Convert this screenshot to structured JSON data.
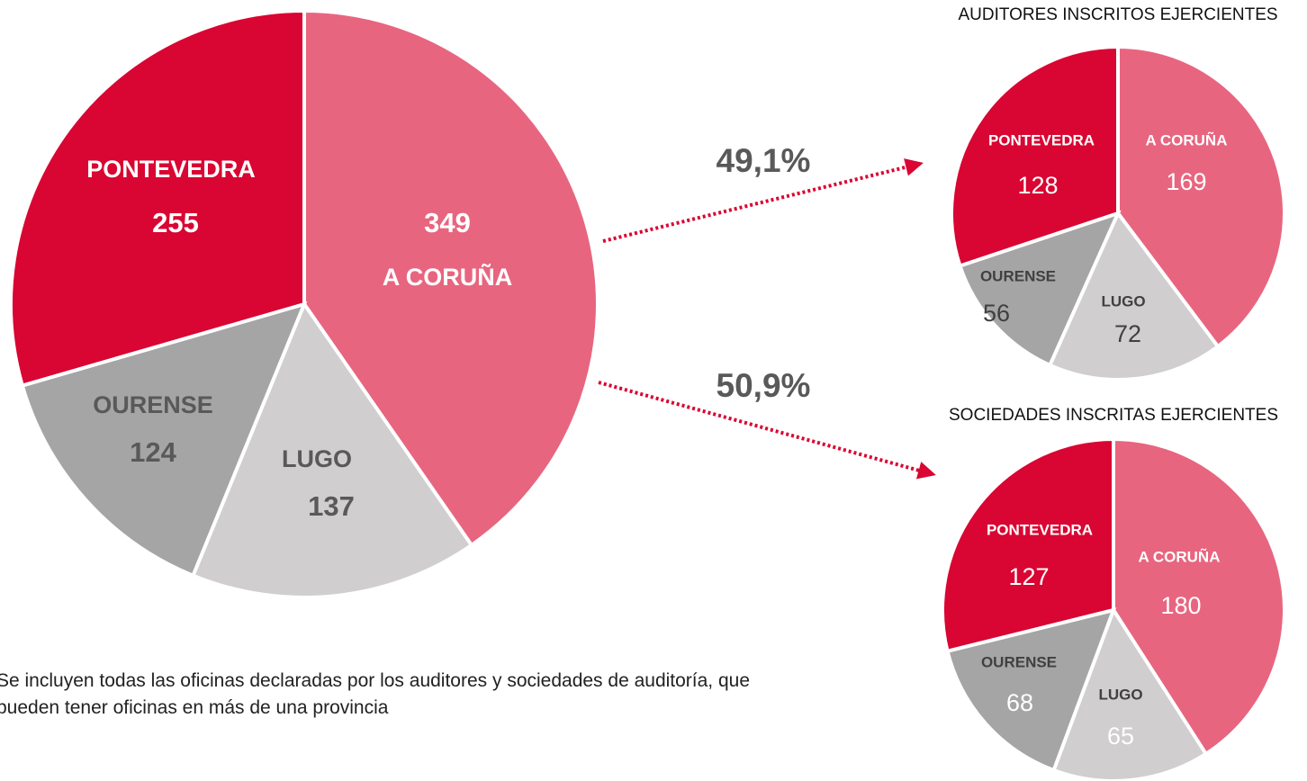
{
  "chart_data": [
    {
      "type": "pie",
      "categories": [
        "A CORUÑA",
        "LUGO",
        "OURENSE",
        "PONTEVEDRA"
      ],
      "values": [
        349,
        137,
        124,
        255
      ],
      "colors": [
        "#e8657f",
        "#d0cecf",
        "#a5a5a5",
        "#d90532"
      ]
    },
    {
      "type": "pie",
      "title": "AUDITORES INSCRITOS EJERCIENTES",
      "categories": [
        "A CORUÑA",
        "LUGO",
        "OURENSE",
        "PONTEVEDRA"
      ],
      "values": [
        169,
        72,
        56,
        128
      ],
      "colors": [
        "#e8657f",
        "#d0cecf",
        "#a5a5a5",
        "#d90532"
      ]
    },
    {
      "type": "pie",
      "title": "SOCIEDADES INSCRITAS EJERCIENTES",
      "categories": [
        "A CORUÑA",
        "LUGO",
        "OURENSE",
        "PONTEVEDRA"
      ],
      "values": [
        180,
        65,
        68,
        127
      ],
      "colors": [
        "#e8657f",
        "#d0cecf",
        "#a5a5a5",
        "#d90532"
      ]
    }
  ],
  "annotations": [
    "49,1%",
    "50,9%"
  ],
  "note": "Se incluyen todas las oficinas declaradas por los auditores y sociedades de auditoría, que pueden tener oficinas en más de una provincia"
}
